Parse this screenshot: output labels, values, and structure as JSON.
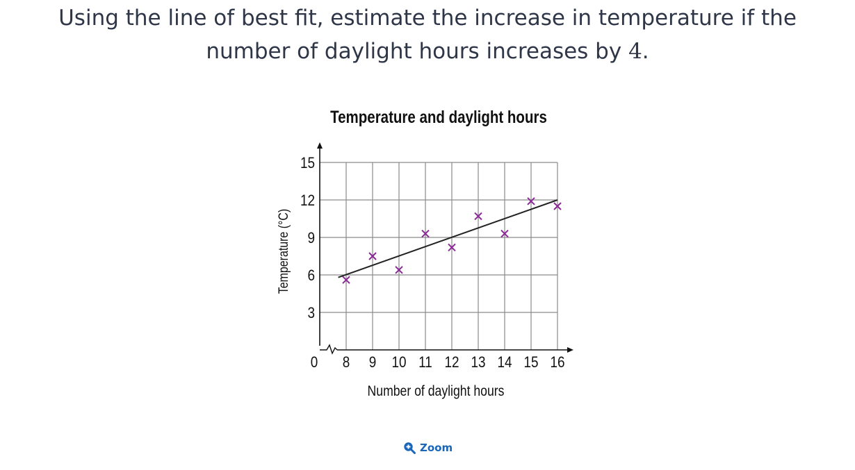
{
  "question": {
    "line1": "Using the line of best fit, estimate the increase in temperature if the",
    "line2_text": "number of daylight hours increases by ",
    "line2_number": "4",
    "line2_end": "."
  },
  "chart_data": {
    "type": "scatter",
    "title": "Temperature and daylight hours",
    "xlabel": "Number of daylight hours",
    "ylabel": "Temperature (°C)",
    "x_ticks": [
      "8",
      "9",
      "10",
      "11",
      "12",
      "13",
      "14",
      "15",
      "16"
    ],
    "y_ticks": [
      "3",
      "6",
      "9",
      "12",
      "15"
    ],
    "origin_label": "0",
    "xlim": [
      7.3,
      16.6
    ],
    "ylim": [
      0,
      15
    ],
    "grid": true,
    "axis_break": true,
    "marker": "cross",
    "marker_color": "#8b2a96",
    "points": [
      {
        "x": 8,
        "y": 5.6
      },
      {
        "x": 9,
        "y": 7.5
      },
      {
        "x": 10,
        "y": 6.4
      },
      {
        "x": 11,
        "y": 9.3
      },
      {
        "x": 12,
        "y": 8.2
      },
      {
        "x": 13,
        "y": 10.7
      },
      {
        "x": 14,
        "y": 9.3
      },
      {
        "x": 15,
        "y": 11.9
      },
      {
        "x": 16,
        "y": 11.5
      }
    ],
    "best_fit": {
      "x1": 7.7,
      "y1": 5.8,
      "x2": 16,
      "y2": 12.0,
      "color": "#222222"
    }
  },
  "zoom": {
    "label": "Zoom",
    "icon": "zoom-in-icon",
    "color": "#1a66b8"
  }
}
